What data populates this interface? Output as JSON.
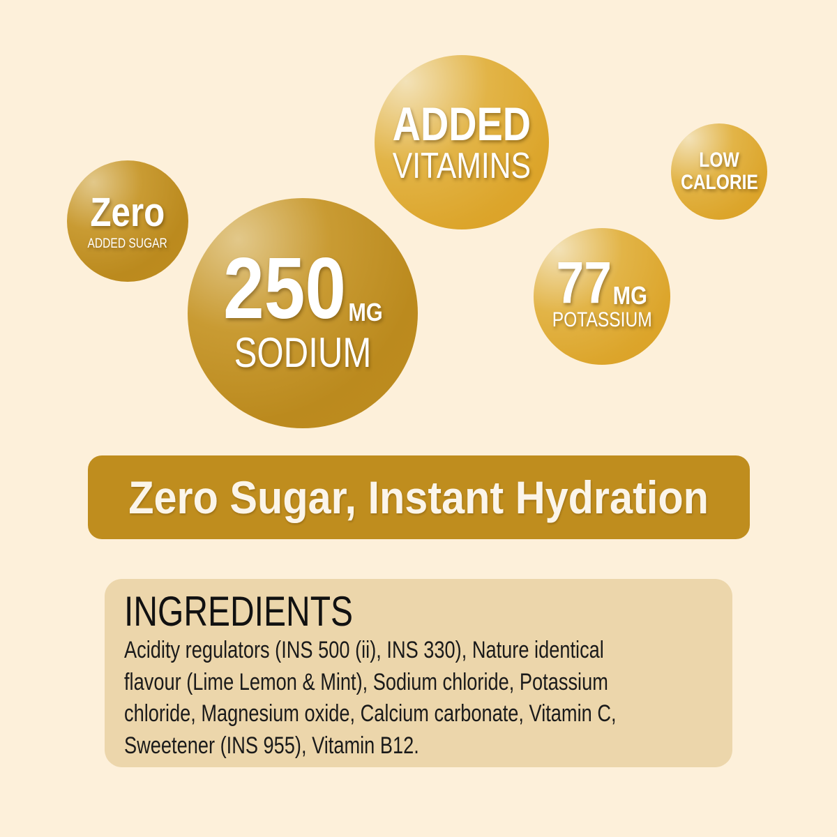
{
  "badges": {
    "zero_sugar": {
      "big": "Zero",
      "small": "ADDED SUGAR"
    },
    "sodium": {
      "value": "250",
      "unit": "MG",
      "label": "SODIUM"
    },
    "vitamins": {
      "line1": "ADDED",
      "line2": "VITAMINS"
    },
    "low_calorie": {
      "line1": "LOW",
      "line2": "CALORIE"
    },
    "potassium": {
      "value": "77",
      "unit": "MG",
      "label": "POTASSIUM"
    }
  },
  "banner": {
    "text": "Zero Sugar, Instant Hydration"
  },
  "ingredients": {
    "title": "INGREDIENTS",
    "lines": [
      "Acidity regulators (INS 500 (ii), INS 330), Nature identical",
      "flavour (Lime Lemon & Mint), Sodium chloride, Potassium",
      "chloride, Magnesium oxide, Calcium carbonate, Vitamin C,",
      "Sweetener (INS 955), Vitamin B12."
    ]
  },
  "colors": {
    "background": "#fdf0da",
    "gold_dark": "#bf8d1e",
    "gold_light": "#dca52b",
    "panel": "#ecd6ab"
  }
}
